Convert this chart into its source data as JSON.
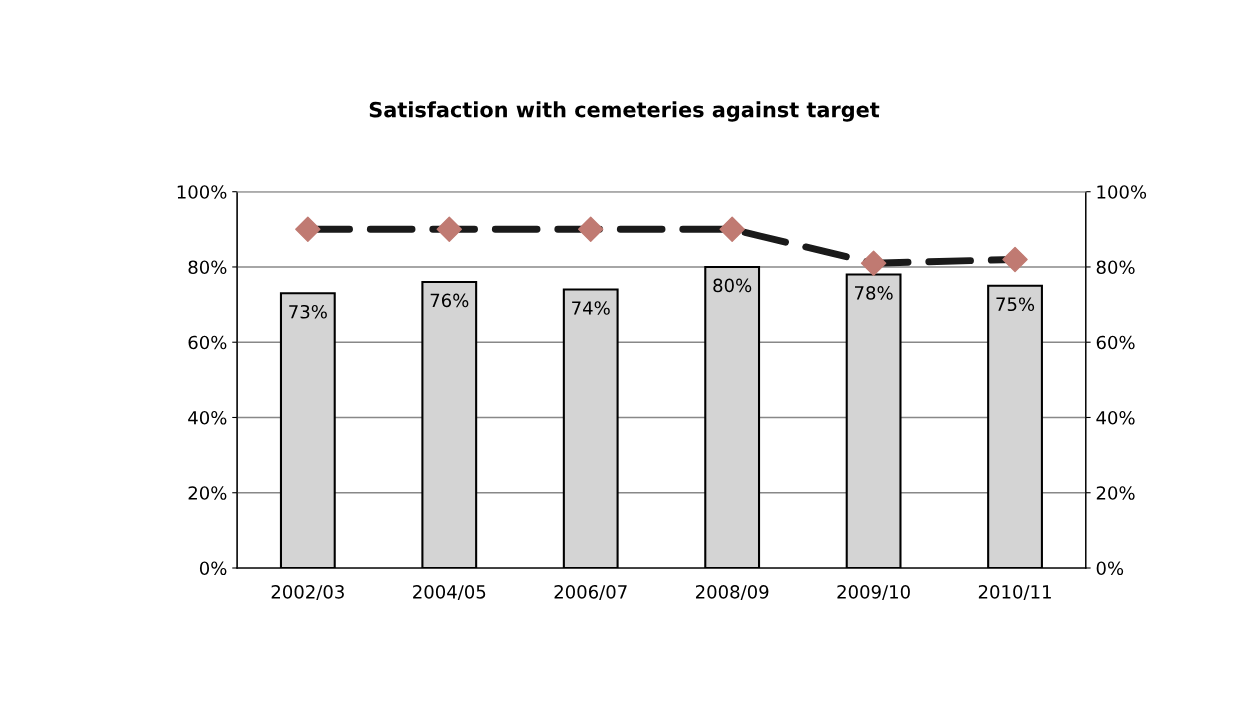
{
  "chart_data": {
    "type": "bar",
    "title": "Satisfaction with cemeteries against target",
    "categories": [
      "2002/03",
      "2004/05",
      "2006/07",
      "2008/09",
      "2009/10",
      "2010/11"
    ],
    "series": [
      {
        "color": "#d4d4d4",
        "values": [
          73,
          76,
          74,
          80,
          78,
          75
        ],
        "value_labels": [
          "73%",
          "76%",
          "74%",
          "80%",
          "78%",
          "75%"
        ]
      },
      {
        "type": "line",
        "color": "#1a1a1a",
        "line_style": "dashed",
        "values": [
          90,
          90,
          90,
          90,
          81,
          82
        ]
      },
      {
        "type": "scatter",
        "color": "#c07a72",
        "marker": "diamond",
        "values": [
          90,
          90,
          90,
          90,
          81,
          82
        ]
      }
    ],
    "ylim": [
      0,
      100
    ],
    "yticks": [
      {
        "value": 0,
        "label": "0%"
      },
      {
        "value": 20,
        "label": "20%"
      },
      {
        "value": 40,
        "label": "40%"
      },
      {
        "value": 60,
        "label": "60%"
      },
      {
        "value": 80,
        "label": "80%"
      },
      {
        "value": 100,
        "label": "100%"
      }
    ],
    "y2lim": [
      0,
      100
    ],
    "y2ticks": [
      {
        "value": 0,
        "label": "0%"
      },
      {
        "value": 20,
        "label": "20%"
      },
      {
        "value": 40,
        "label": "40%"
      },
      {
        "value": 60,
        "label": "60%"
      },
      {
        "value": 80,
        "label": "80%"
      },
      {
        "value": 100,
        "label": "100%"
      }
    ],
    "grid": "y",
    "legend": false
  }
}
